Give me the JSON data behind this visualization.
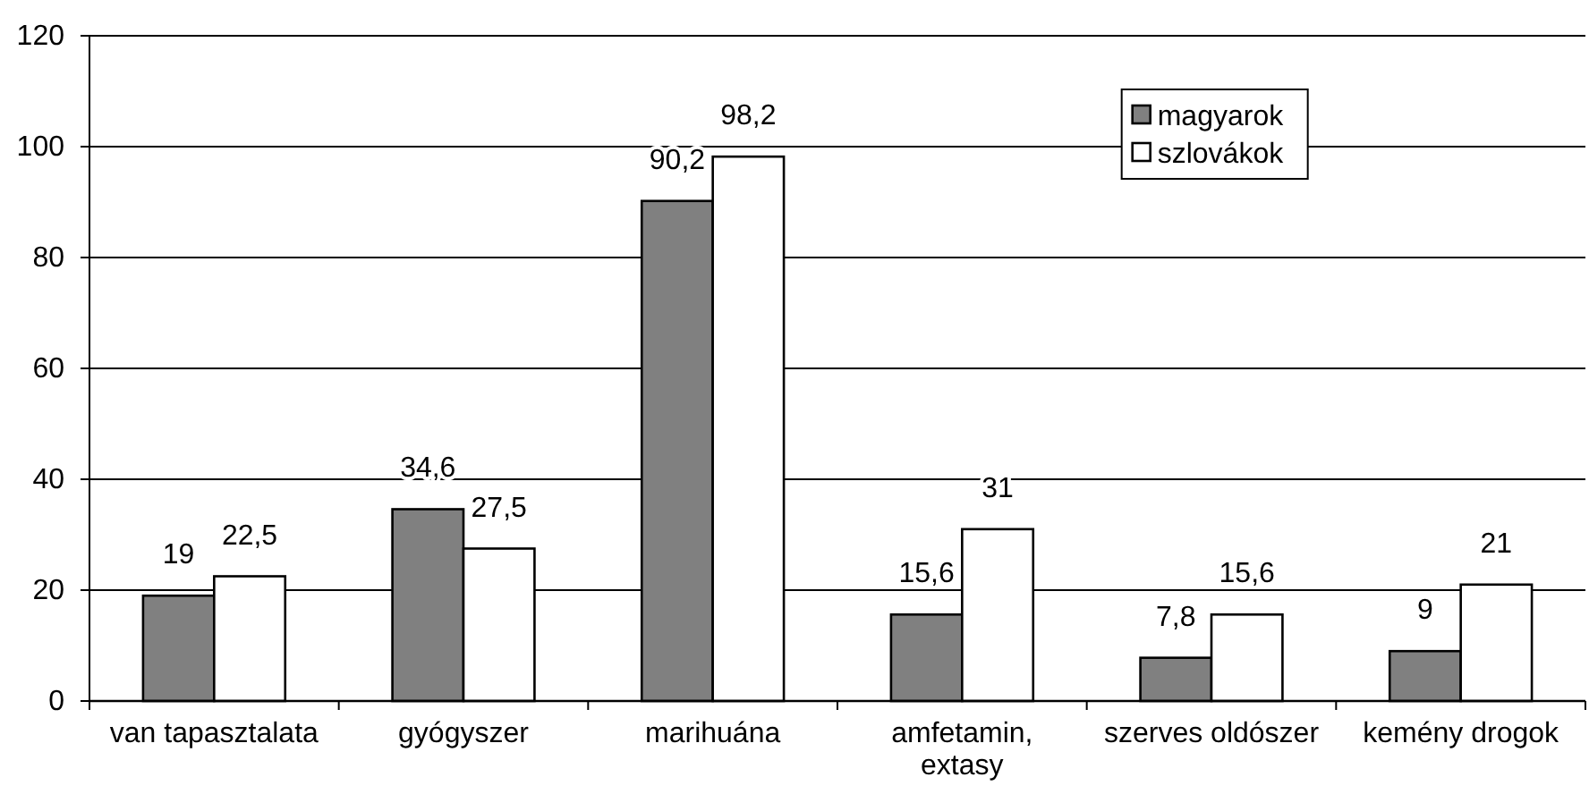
{
  "chart_data": {
    "type": "bar",
    "categories": [
      "van tapasztalata",
      "gyógyszer",
      "marihuána",
      "amfetamin, extasy",
      "szerves oldószer",
      "kemény drogok"
    ],
    "series": [
      {
        "name": "magyarok",
        "color": "#808080",
        "values": [
          19,
          34.6,
          90.2,
          15.6,
          7.8,
          9
        ],
        "value_labels": [
          "19",
          "34,6",
          "90,2",
          "15,6",
          "7,8",
          "9"
        ]
      },
      {
        "name": "szlovákok",
        "color": "#ffffff",
        "values": [
          22.5,
          27.5,
          98.2,
          31,
          15.6,
          21
        ],
        "value_labels": [
          "22,5",
          "27,5",
          "98,2",
          "31",
          "15,6",
          "21"
        ]
      }
    ],
    "ylim": [
      0,
      120
    ],
    "yticks": [
      0,
      20,
      40,
      60,
      80,
      100,
      120
    ],
    "grid": "y",
    "legend": "top right"
  }
}
